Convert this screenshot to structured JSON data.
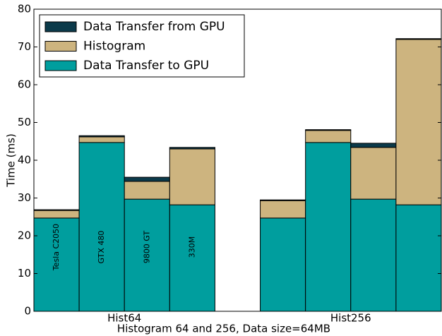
{
  "chart_data": {
    "type": "stacked_grouped_bar",
    "xlabel": "Histogram 64 and 256, Data size=64MB",
    "ylabel": "Time (ms)",
    "categories": [
      "Hist64",
      "Hist256"
    ],
    "devices": [
      "Tesla C2050",
      "GTX 480",
      "9800 GT",
      "330M"
    ],
    "series": [
      {
        "name": "Data Transfer to GPU",
        "color": "#009e9e",
        "values": [
          [
            24.7,
            44.7,
            29.7,
            28.2
          ],
          [
            24.7,
            44.7,
            29.7,
            28.2
          ]
        ]
      },
      {
        "name": "Histogram",
        "color": "#cdb47f",
        "values": [
          [
            2.0,
            1.5,
            4.7,
            14.8
          ],
          [
            4.6,
            3.2,
            13.7,
            43.8
          ]
        ]
      },
      {
        "name": "Data Transfer from GPU",
        "color": "#0b3a4a",
        "values": [
          [
            0.2,
            0.3,
            1.1,
            0.4
          ],
          [
            0.2,
            0.2,
            1.1,
            0.2
          ]
        ]
      }
    ],
    "ylim": [
      0,
      80
    ],
    "yticks": [
      0,
      10,
      20,
      30,
      40,
      50,
      60,
      70,
      80
    ],
    "legend": "upper left",
    "grid": false
  }
}
